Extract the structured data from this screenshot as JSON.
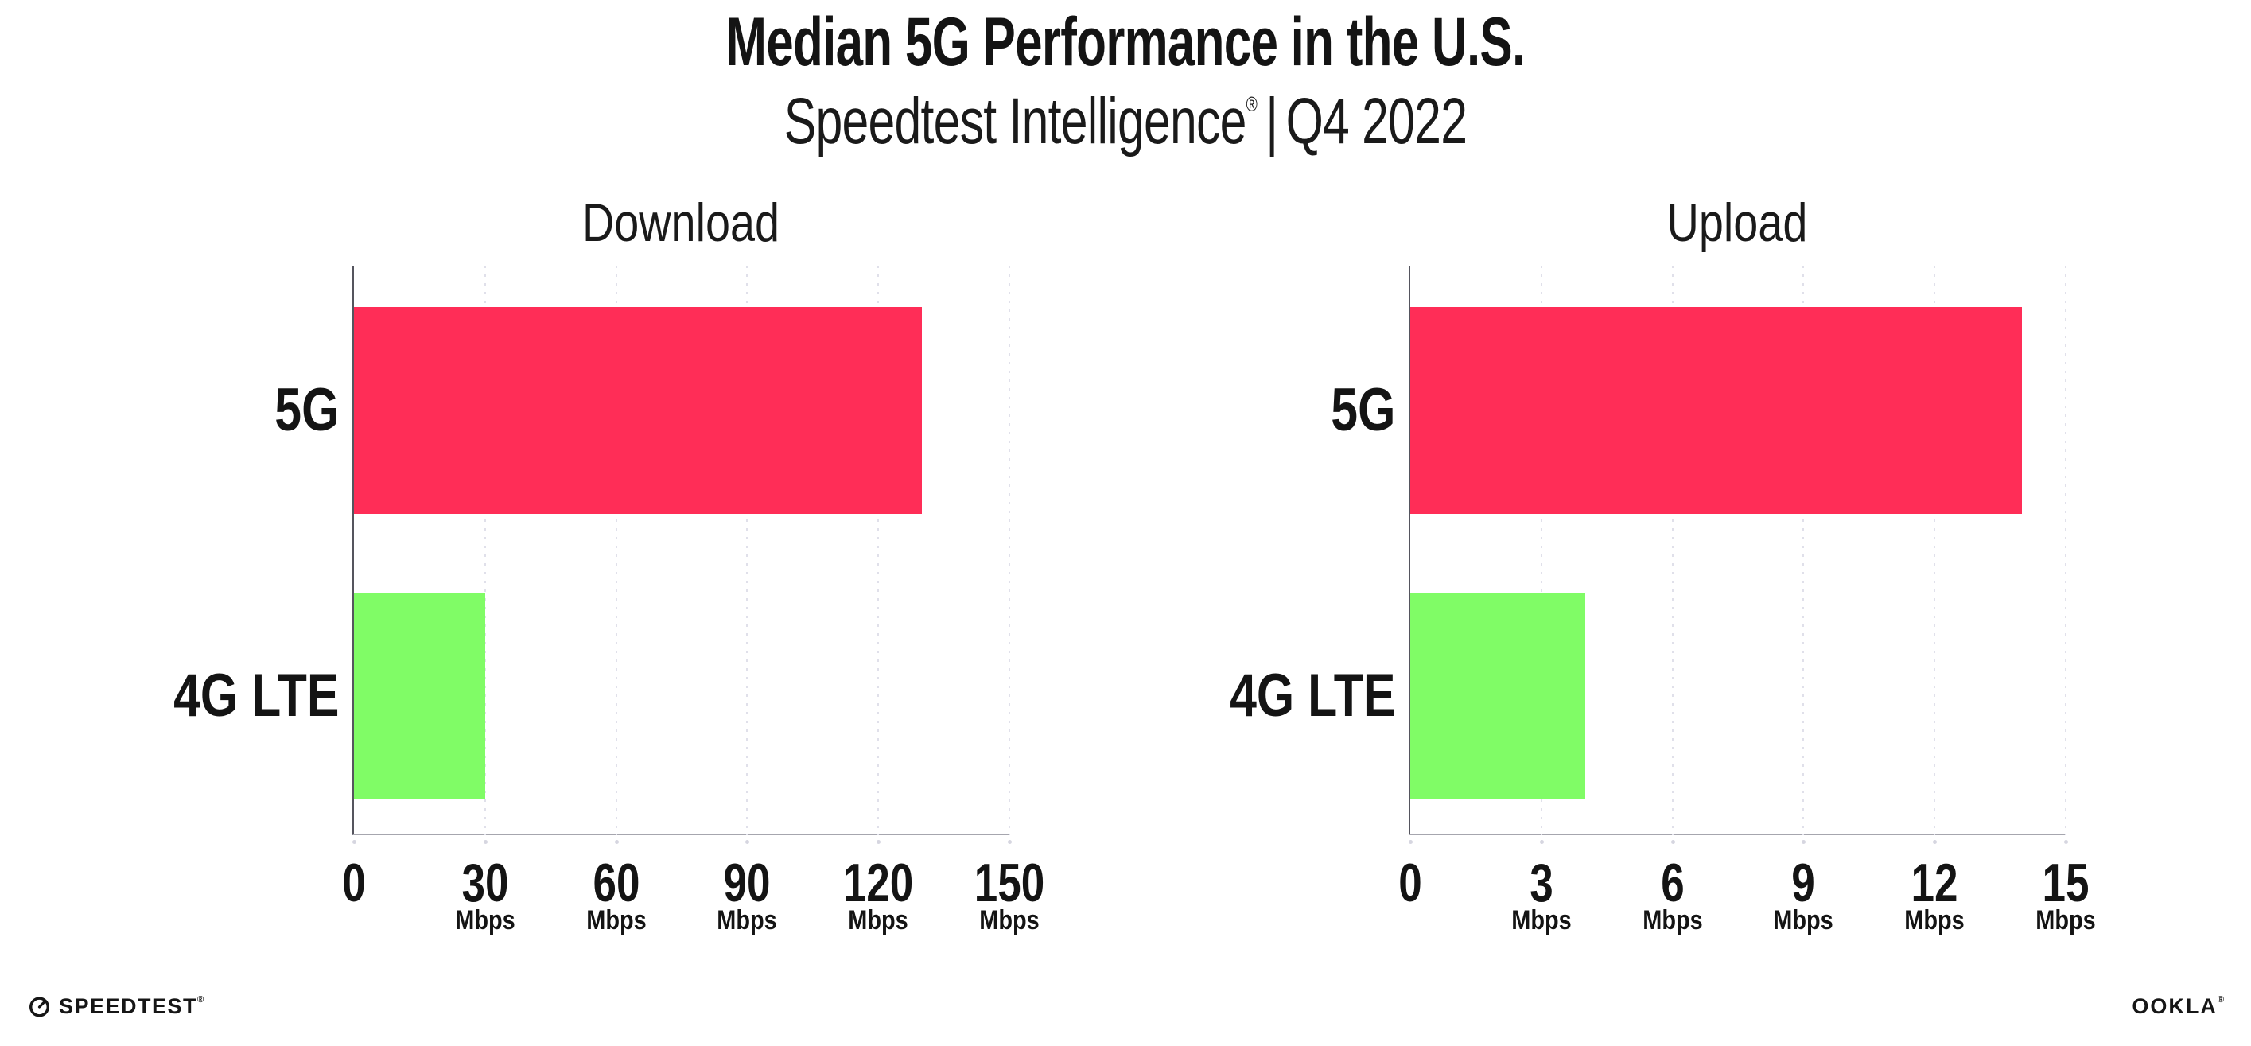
{
  "header": {
    "title": "Median 5G Performance in the U.S.",
    "subtitle_brand": "Speedtest Intelligence",
    "subtitle_registered": "®",
    "subtitle_separator": "|",
    "subtitle_period": "Q4 2022"
  },
  "chart_data": [
    {
      "type": "bar",
      "orientation": "horizontal",
      "title": "Download",
      "categories": [
        "5G",
        "4G LTE"
      ],
      "values": [
        130,
        30
      ],
      "value_unit": "Mbps",
      "series_colors": [
        "#FF2D57",
        "#80FC66"
      ],
      "xlim": [
        0,
        150
      ],
      "xticks": [
        0,
        30,
        60,
        90,
        120,
        150
      ],
      "xtick_unit_label": "Mbps",
      "unit_on_zero_tick": false,
      "grid": "vertical-dotted",
      "legend": "none"
    },
    {
      "type": "bar",
      "orientation": "horizontal",
      "title": "Upload",
      "categories": [
        "5G",
        "4G LTE"
      ],
      "values": [
        14,
        4
      ],
      "value_unit": "Mbps",
      "series_colors": [
        "#FF2D57",
        "#80FC66"
      ],
      "xlim": [
        0,
        15
      ],
      "xticks": [
        0,
        3,
        6,
        9,
        12,
        15
      ],
      "xtick_unit_label": "Mbps",
      "unit_on_zero_tick": false,
      "grid": "vertical-dotted",
      "legend": "none"
    }
  ],
  "colors": {
    "bar_5g": "#FF2D57",
    "bar_4g_lte": "#80FC66",
    "gridline": "#E0E0EA",
    "y_axis_line": "#55555E",
    "x_axis_line": "#A6A6AE",
    "text": "#141414"
  },
  "footer": {
    "speedtest_label": "SPEEDTEST",
    "speedtest_registered": "®",
    "ookla_label": "OOKLA",
    "ookla_registered": "®"
  }
}
